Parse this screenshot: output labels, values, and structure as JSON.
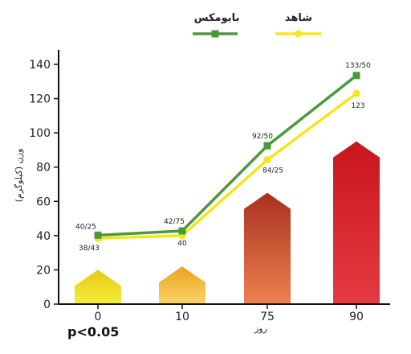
{
  "chart_data": {
    "type": "line",
    "categories": [
      "0",
      "10",
      "75",
      "90"
    ],
    "ylabel": "وزن (کیلوگرم)",
    "xlabel": "روز",
    "ylim": [
      0,
      140
    ],
    "yticks": [
      "0",
      "20",
      "40",
      "60",
      "80",
      "100",
      "120",
      "140"
    ],
    "grid": false,
    "legend_position": "top",
    "note": "p<0.05",
    "series": [
      {
        "name": "بایومکس",
        "color": "#4a9a3c",
        "marker": "square",
        "values": [
          40.25,
          42.75,
          92.5,
          133.5
        ],
        "labels": [
          "40/25",
          "42/75",
          "92/50",
          "133/50"
        ]
      },
      {
        "name": "شاهد",
        "color": "#f5e51a",
        "marker": "circle",
        "values": [
          38.43,
          40,
          84.25,
          123
        ],
        "labels": [
          "38/43",
          "40",
          "84/25",
          "123"
        ]
      }
    ],
    "bars": {
      "shape": "arrow",
      "values": [
        20,
        22,
        65,
        95
      ],
      "colors": [
        [
          "#f4ee3a",
          "#e5c815"
        ],
        [
          "#fbd56a",
          "#e9a11f"
        ],
        [
          "#f08050",
          "#a8311f"
        ],
        [
          "#e53a42",
          "#c8161d"
        ]
      ]
    }
  }
}
